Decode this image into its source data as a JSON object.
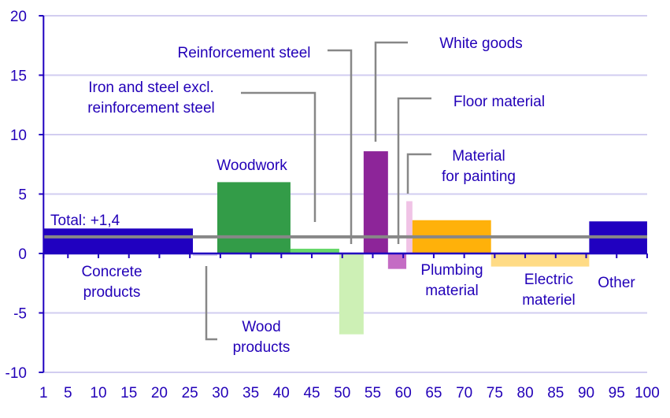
{
  "chart_data": {
    "type": "bar",
    "variant": "variable-width",
    "title": "",
    "xlabel": "",
    "ylabel": "",
    "xlim": [
      1,
      100
    ],
    "ylim": [
      -10,
      20
    ],
    "x_ticks": [
      1,
      5,
      10,
      15,
      20,
      25,
      30,
      35,
      40,
      45,
      50,
      55,
      60,
      65,
      70,
      75,
      80,
      85,
      90,
      95,
      100
    ],
    "y_ticks": [
      -10,
      -5,
      0,
      5,
      10,
      15,
      20
    ],
    "grid": true,
    "total": {
      "label": "Total: +1,4",
      "value": 1.4,
      "color": "#878787"
    },
    "bars": [
      {
        "name": "Concrete products",
        "label_lines": [
          "Concrete",
          "products"
        ],
        "x0": 1,
        "x1": 25.5,
        "value": 2.1,
        "color": "#2000c0"
      },
      {
        "name": "Wood products",
        "label_lines": [
          "Wood",
          "products"
        ],
        "x0": 25.5,
        "x1": 29.5,
        "value": -0.2,
        "color": "#d0cbf0"
      },
      {
        "name": "Woodwork",
        "label_lines": [
          "Woodwork"
        ],
        "x0": 29.5,
        "x1": 41.5,
        "value": 6.0,
        "color": "#339c48"
      },
      {
        "name": "Iron and steel excl. reinforcement steel",
        "label_lines": [
          "Iron and steel excl.",
          "reinforcement steel"
        ],
        "x0": 41.5,
        "x1": 49.5,
        "value": 0.4,
        "color": "#66d86a"
      },
      {
        "name": "Reinforcement steel",
        "label_lines": [
          "Reinforcement steel"
        ],
        "x0": 49.5,
        "x1": 53.5,
        "value": -6.8,
        "color": "#cdf0b5"
      },
      {
        "name": "White goods",
        "label_lines": [
          "White goods"
        ],
        "x0": 53.5,
        "x1": 57.5,
        "value": 8.6,
        "color": "#8d2599"
      },
      {
        "name": "Floor material",
        "label_lines": [
          "Floor material"
        ],
        "x0": 57.5,
        "x1": 60.5,
        "value": -1.3,
        "color": "#c46cc4"
      },
      {
        "name": "Material for painting",
        "label_lines": [
          "Material",
          "for painting"
        ],
        "x0": 60.5,
        "x1": 61.5,
        "value": 4.4,
        "color": "#f0c3e6"
      },
      {
        "name": "Plumbing material",
        "label_lines": [
          "Plumbing",
          "material"
        ],
        "x0": 61.5,
        "x1": 74.4,
        "value": 2.8,
        "color": "#ffb10a"
      },
      {
        "name": "Electric materiel",
        "label_lines": [
          "Electric",
          "materiel"
        ],
        "x0": 74.4,
        "x1": 90.5,
        "value": -1.1,
        "color": "#ffdb85"
      },
      {
        "name": "Other",
        "label_lines": [
          "Other"
        ],
        "x0": 90.5,
        "x1": 100,
        "value": 2.7,
        "color": "#2000c0"
      }
    ]
  }
}
